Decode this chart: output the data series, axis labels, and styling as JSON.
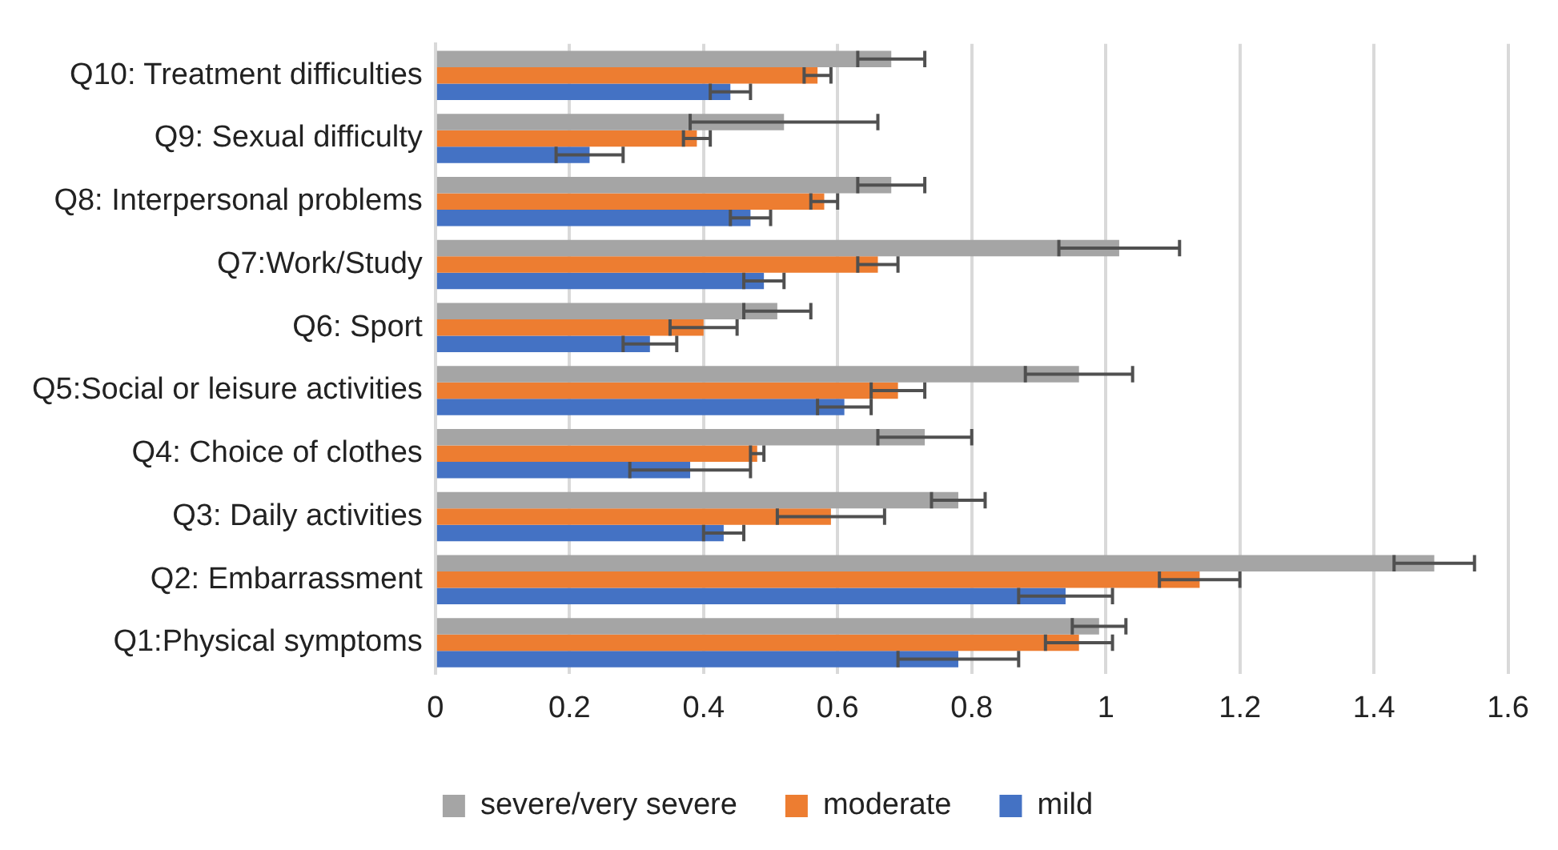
{
  "chart_data": {
    "type": "bar",
    "orientation": "horizontal",
    "categories": [
      "Q10: Treatment difficulties",
      "Q9: Sexual difficulty",
      "Q8: Interpersonal problems",
      "Q7:Work/Study",
      "Q6: Sport",
      "Q5:Social or leisure activities",
      "Q4: Choice of clothes",
      "Q3: Daily activities",
      "Q2: Embarrassment",
      "Q1:Physical symptoms"
    ],
    "series": [
      {
        "name": "severe/very severe",
        "color": "#a5a5a5",
        "values": [
          0.68,
          0.52,
          0.68,
          1.02,
          0.51,
          0.96,
          0.73,
          0.78,
          1.49,
          0.99
        ],
        "errors": [
          0.05,
          0.14,
          0.05,
          0.09,
          0.05,
          0.08,
          0.07,
          0.04,
          0.06,
          0.04
        ]
      },
      {
        "name": "moderate",
        "color": "#ed7d31",
        "values": [
          0.57,
          0.39,
          0.58,
          0.66,
          0.4,
          0.69,
          0.48,
          0.59,
          1.14,
          0.96
        ],
        "errors": [
          0.02,
          0.02,
          0.02,
          0.03,
          0.05,
          0.04,
          0.01,
          0.08,
          0.06,
          0.05
        ]
      },
      {
        "name": "mild",
        "color": "#4472c4",
        "values": [
          0.44,
          0.23,
          0.47,
          0.49,
          0.32,
          0.61,
          0.38,
          0.43,
          0.94,
          0.78
        ],
        "errors": [
          0.03,
          0.05,
          0.03,
          0.03,
          0.04,
          0.04,
          0.09,
          0.03,
          0.07,
          0.09
        ]
      }
    ],
    "xlim": [
      0,
      1.6
    ],
    "xticks": [
      0,
      0.2,
      0.4,
      0.6,
      0.8,
      1,
      1.2,
      1.4,
      1.6
    ],
    "grid": "x",
    "legend": "bottom"
  }
}
